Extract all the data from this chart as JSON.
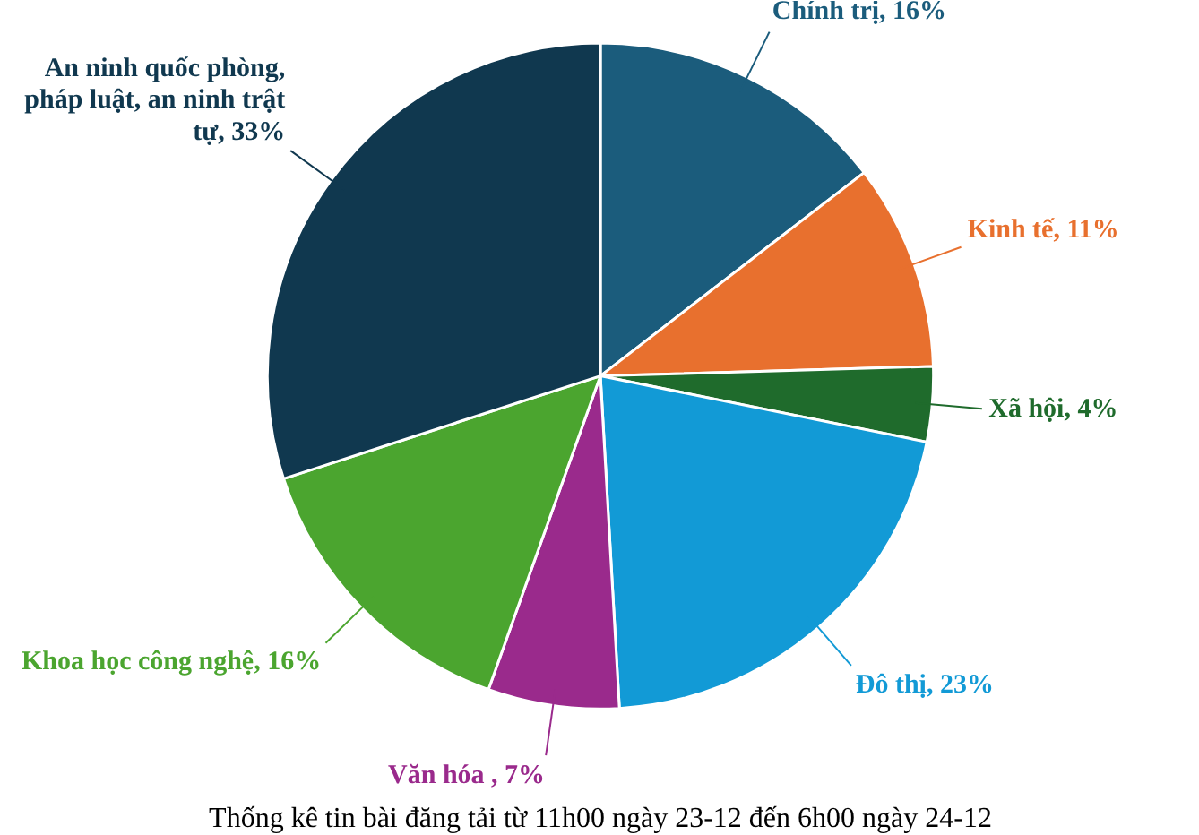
{
  "chart_data": {
    "type": "pie",
    "title": "Thống kê tin bài đăng tải từ 11h00 ngày 23-12 đến 6h00 ngày 24-12",
    "categories": [
      "Chính trị, 16%",
      "Kinh tế, 11%",
      "Xã hội, 4%",
      "Đô thị, 23%",
      "Văn hóa , 7%",
      "Khoa học công nghệ, 16%",
      "An ninh quốc phòng, pháp luật, an ninh trật tự, 33%"
    ],
    "values": [
      16,
      11,
      4,
      23,
      7,
      16,
      33
    ],
    "colors": [
      "#1b5c7c",
      "#e8702e",
      "#1f6b2c",
      "#129ad6",
      "#9a2a8c",
      "#4ba52f",
      "#10384f"
    ]
  }
}
